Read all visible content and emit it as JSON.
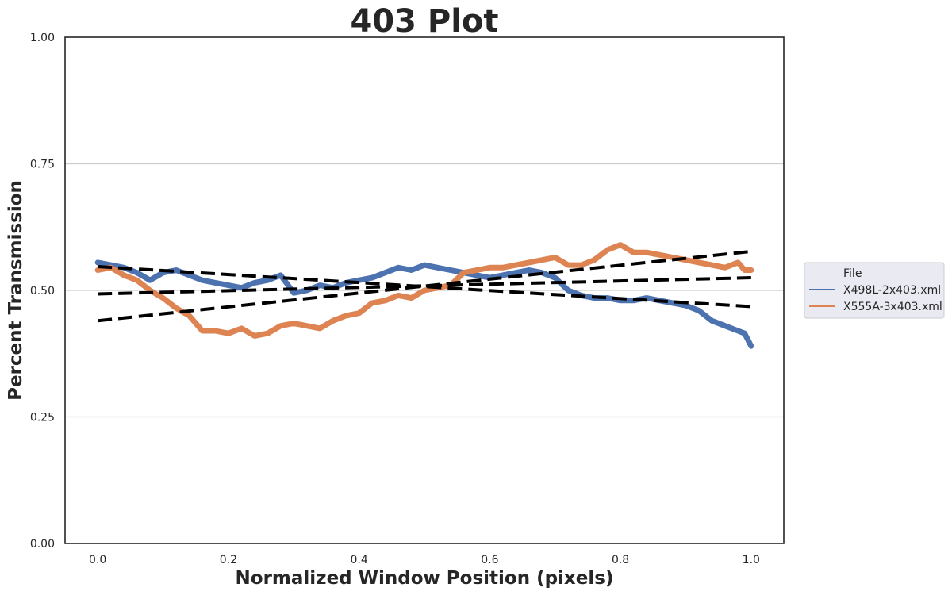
{
  "chart_data": {
    "type": "line",
    "title": "403 Plot",
    "xlabel": "Normalized Window Position (pixels)",
    "ylabel": "Percent Transmission",
    "xlim": [
      -0.05,
      1.05
    ],
    "ylim": [
      0.0,
      1.0
    ],
    "xticks": [
      "0.0",
      "0.2",
      "0.4",
      "0.6",
      "0.8",
      "1.0"
    ],
    "yticks": [
      "0.00",
      "0.25",
      "0.50",
      "0.75",
      "1.00"
    ],
    "grid": "horizontal",
    "legend": {
      "title": "File",
      "placement": "right-outside",
      "entries": [
        "X498L-2x403.xml",
        "X555A-3x403.xml"
      ]
    },
    "series": [
      {
        "name": "X498L-2x403.xml",
        "color": "#4c72b0",
        "x": [
          0.0,
          0.02,
          0.04,
          0.06,
          0.08,
          0.1,
          0.12,
          0.14,
          0.16,
          0.18,
          0.2,
          0.22,
          0.24,
          0.26,
          0.28,
          0.3,
          0.32,
          0.34,
          0.36,
          0.38,
          0.4,
          0.42,
          0.44,
          0.46,
          0.48,
          0.5,
          0.52,
          0.54,
          0.56,
          0.58,
          0.6,
          0.62,
          0.64,
          0.66,
          0.68,
          0.7,
          0.72,
          0.74,
          0.76,
          0.78,
          0.8,
          0.82,
          0.84,
          0.86,
          0.88,
          0.9,
          0.92,
          0.94,
          0.96,
          0.98,
          0.99,
          1.0
        ],
        "y": [
          0.555,
          0.55,
          0.545,
          0.535,
          0.52,
          0.535,
          0.54,
          0.53,
          0.52,
          0.515,
          0.51,
          0.505,
          0.515,
          0.52,
          0.53,
          0.495,
          0.5,
          0.51,
          0.505,
          0.515,
          0.52,
          0.525,
          0.535,
          0.545,
          0.54,
          0.55,
          0.545,
          0.54,
          0.535,
          0.53,
          0.525,
          0.53,
          0.535,
          0.54,
          0.535,
          0.525,
          0.5,
          0.49,
          0.485,
          0.485,
          0.48,
          0.48,
          0.485,
          0.48,
          0.475,
          0.47,
          0.46,
          0.44,
          0.43,
          0.42,
          0.415,
          0.39
        ]
      },
      {
        "name": "X555A-3x403.xml",
        "color": "#dd8452",
        "x": [
          0.0,
          0.02,
          0.04,
          0.06,
          0.08,
          0.1,
          0.12,
          0.14,
          0.16,
          0.18,
          0.2,
          0.22,
          0.24,
          0.26,
          0.28,
          0.3,
          0.32,
          0.34,
          0.36,
          0.38,
          0.4,
          0.42,
          0.44,
          0.46,
          0.48,
          0.5,
          0.52,
          0.54,
          0.56,
          0.58,
          0.6,
          0.62,
          0.64,
          0.66,
          0.68,
          0.7,
          0.72,
          0.74,
          0.76,
          0.78,
          0.8,
          0.82,
          0.84,
          0.86,
          0.88,
          0.9,
          0.92,
          0.94,
          0.96,
          0.98,
          0.99,
          1.0
        ],
        "y": [
          0.54,
          0.545,
          0.53,
          0.52,
          0.5,
          0.485,
          0.465,
          0.45,
          0.42,
          0.42,
          0.415,
          0.425,
          0.41,
          0.415,
          0.43,
          0.435,
          0.43,
          0.425,
          0.44,
          0.45,
          0.455,
          0.475,
          0.48,
          0.49,
          0.485,
          0.5,
          0.505,
          0.51,
          0.535,
          0.54,
          0.545,
          0.545,
          0.55,
          0.555,
          0.56,
          0.565,
          0.55,
          0.55,
          0.56,
          0.58,
          0.59,
          0.575,
          0.575,
          0.57,
          0.565,
          0.56,
          0.555,
          0.55,
          0.545,
          0.555,
          0.54,
          0.54
        ]
      }
    ],
    "trendlines": [
      {
        "x": [
          0.0,
          1.0
        ],
        "y": [
          0.547,
          0.468
        ]
      },
      {
        "x": [
          0.0,
          1.0
        ],
        "y": [
          0.493,
          0.525
        ]
      },
      {
        "x": [
          0.0,
          1.0
        ],
        "y": [
          0.44,
          0.577
        ]
      }
    ]
  }
}
